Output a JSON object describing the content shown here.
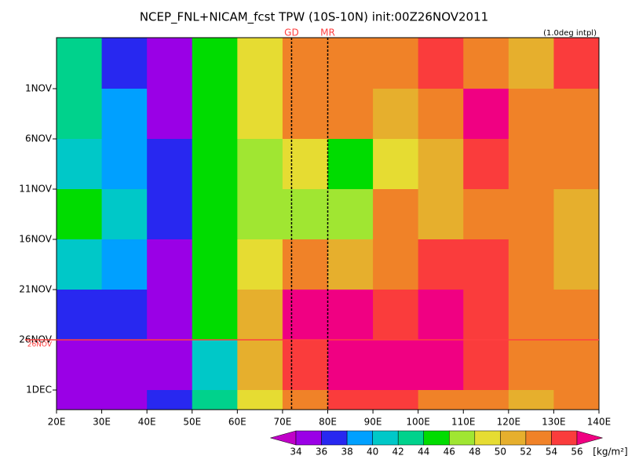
{
  "chart_data": {
    "type": "contour",
    "title": "NCEP_FNL+NICAM_fcst TPW (10S-10N) init:00Z26NOV2011",
    "annotation": "(1.0deg intpl)",
    "x": [
      25,
      35,
      45,
      55,
      65,
      75,
      85,
      95,
      105,
      115,
      125,
      135
    ],
    "xlim": [
      20,
      140
    ],
    "xticks": [
      {
        "value": 20,
        "label": "20E"
      },
      {
        "value": 30,
        "label": "30E"
      },
      {
        "value": 40,
        "label": "40E"
      },
      {
        "value": 50,
        "label": "50E"
      },
      {
        "value": 60,
        "label": "60E"
      },
      {
        "value": 70,
        "label": "70E"
      },
      {
        "value": 80,
        "label": "80E"
      },
      {
        "value": 90,
        "label": "90E"
      },
      {
        "value": 100,
        "label": "100E"
      },
      {
        "value": 110,
        "label": "110E"
      },
      {
        "value": 120,
        "label": "120E"
      },
      {
        "value": 130,
        "label": "130E"
      },
      {
        "value": 140,
        "label": "140E"
      }
    ],
    "yticks": [
      "1NOV",
      "6NOV",
      "11NOV",
      "16NOV",
      "21NOV",
      "26NOV",
      "1DEC"
    ],
    "highlight": "26NOV",
    "highlight_color": "#ff4040",
    "markers": [
      {
        "label": "GD",
        "x": 72
      },
      {
        "label": "MR",
        "x": 80
      }
    ],
    "z": [
      [
        42,
        36,
        34,
        44,
        48,
        52,
        52,
        52,
        54,
        52,
        50,
        54
      ],
      [
        42,
        38,
        35,
        44,
        48,
        52,
        52,
        50,
        52,
        56,
        52,
        52
      ],
      [
        40,
        38,
        36,
        44,
        46,
        48,
        44,
        48,
        50,
        54,
        52,
        52
      ],
      [
        44,
        40,
        36,
        44,
        46,
        46,
        46,
        52,
        50,
        52,
        52,
        50
      ],
      [
        40,
        38,
        34,
        44,
        48,
        52,
        50,
        52,
        54,
        54,
        52,
        50
      ],
      [
        36,
        36,
        34,
        44,
        50,
        56,
        56,
        54,
        56,
        54,
        52,
        52
      ],
      [
        35,
        34,
        34,
        40,
        50,
        54,
        56,
        56,
        56,
        54,
        52,
        52
      ],
      [
        35,
        34,
        36,
        42,
        48,
        52,
        54,
        54,
        52,
        52,
        50,
        52
      ]
    ],
    "colorbar": {
      "levels": [
        34,
        36,
        38,
        40,
        42,
        44,
        46,
        48,
        50,
        52,
        54,
        56
      ],
      "colors": [
        "#c000c8",
        "#9a00e6",
        "#2828f0",
        "#00a0ff",
        "#00c8c8",
        "#00d28c",
        "#00dc00",
        "#a0e632",
        "#e6dc32",
        "#e6af2d",
        "#f08228",
        "#fa3c3c",
        "#f00082"
      ],
      "unit": "[kg/m²]"
    }
  }
}
